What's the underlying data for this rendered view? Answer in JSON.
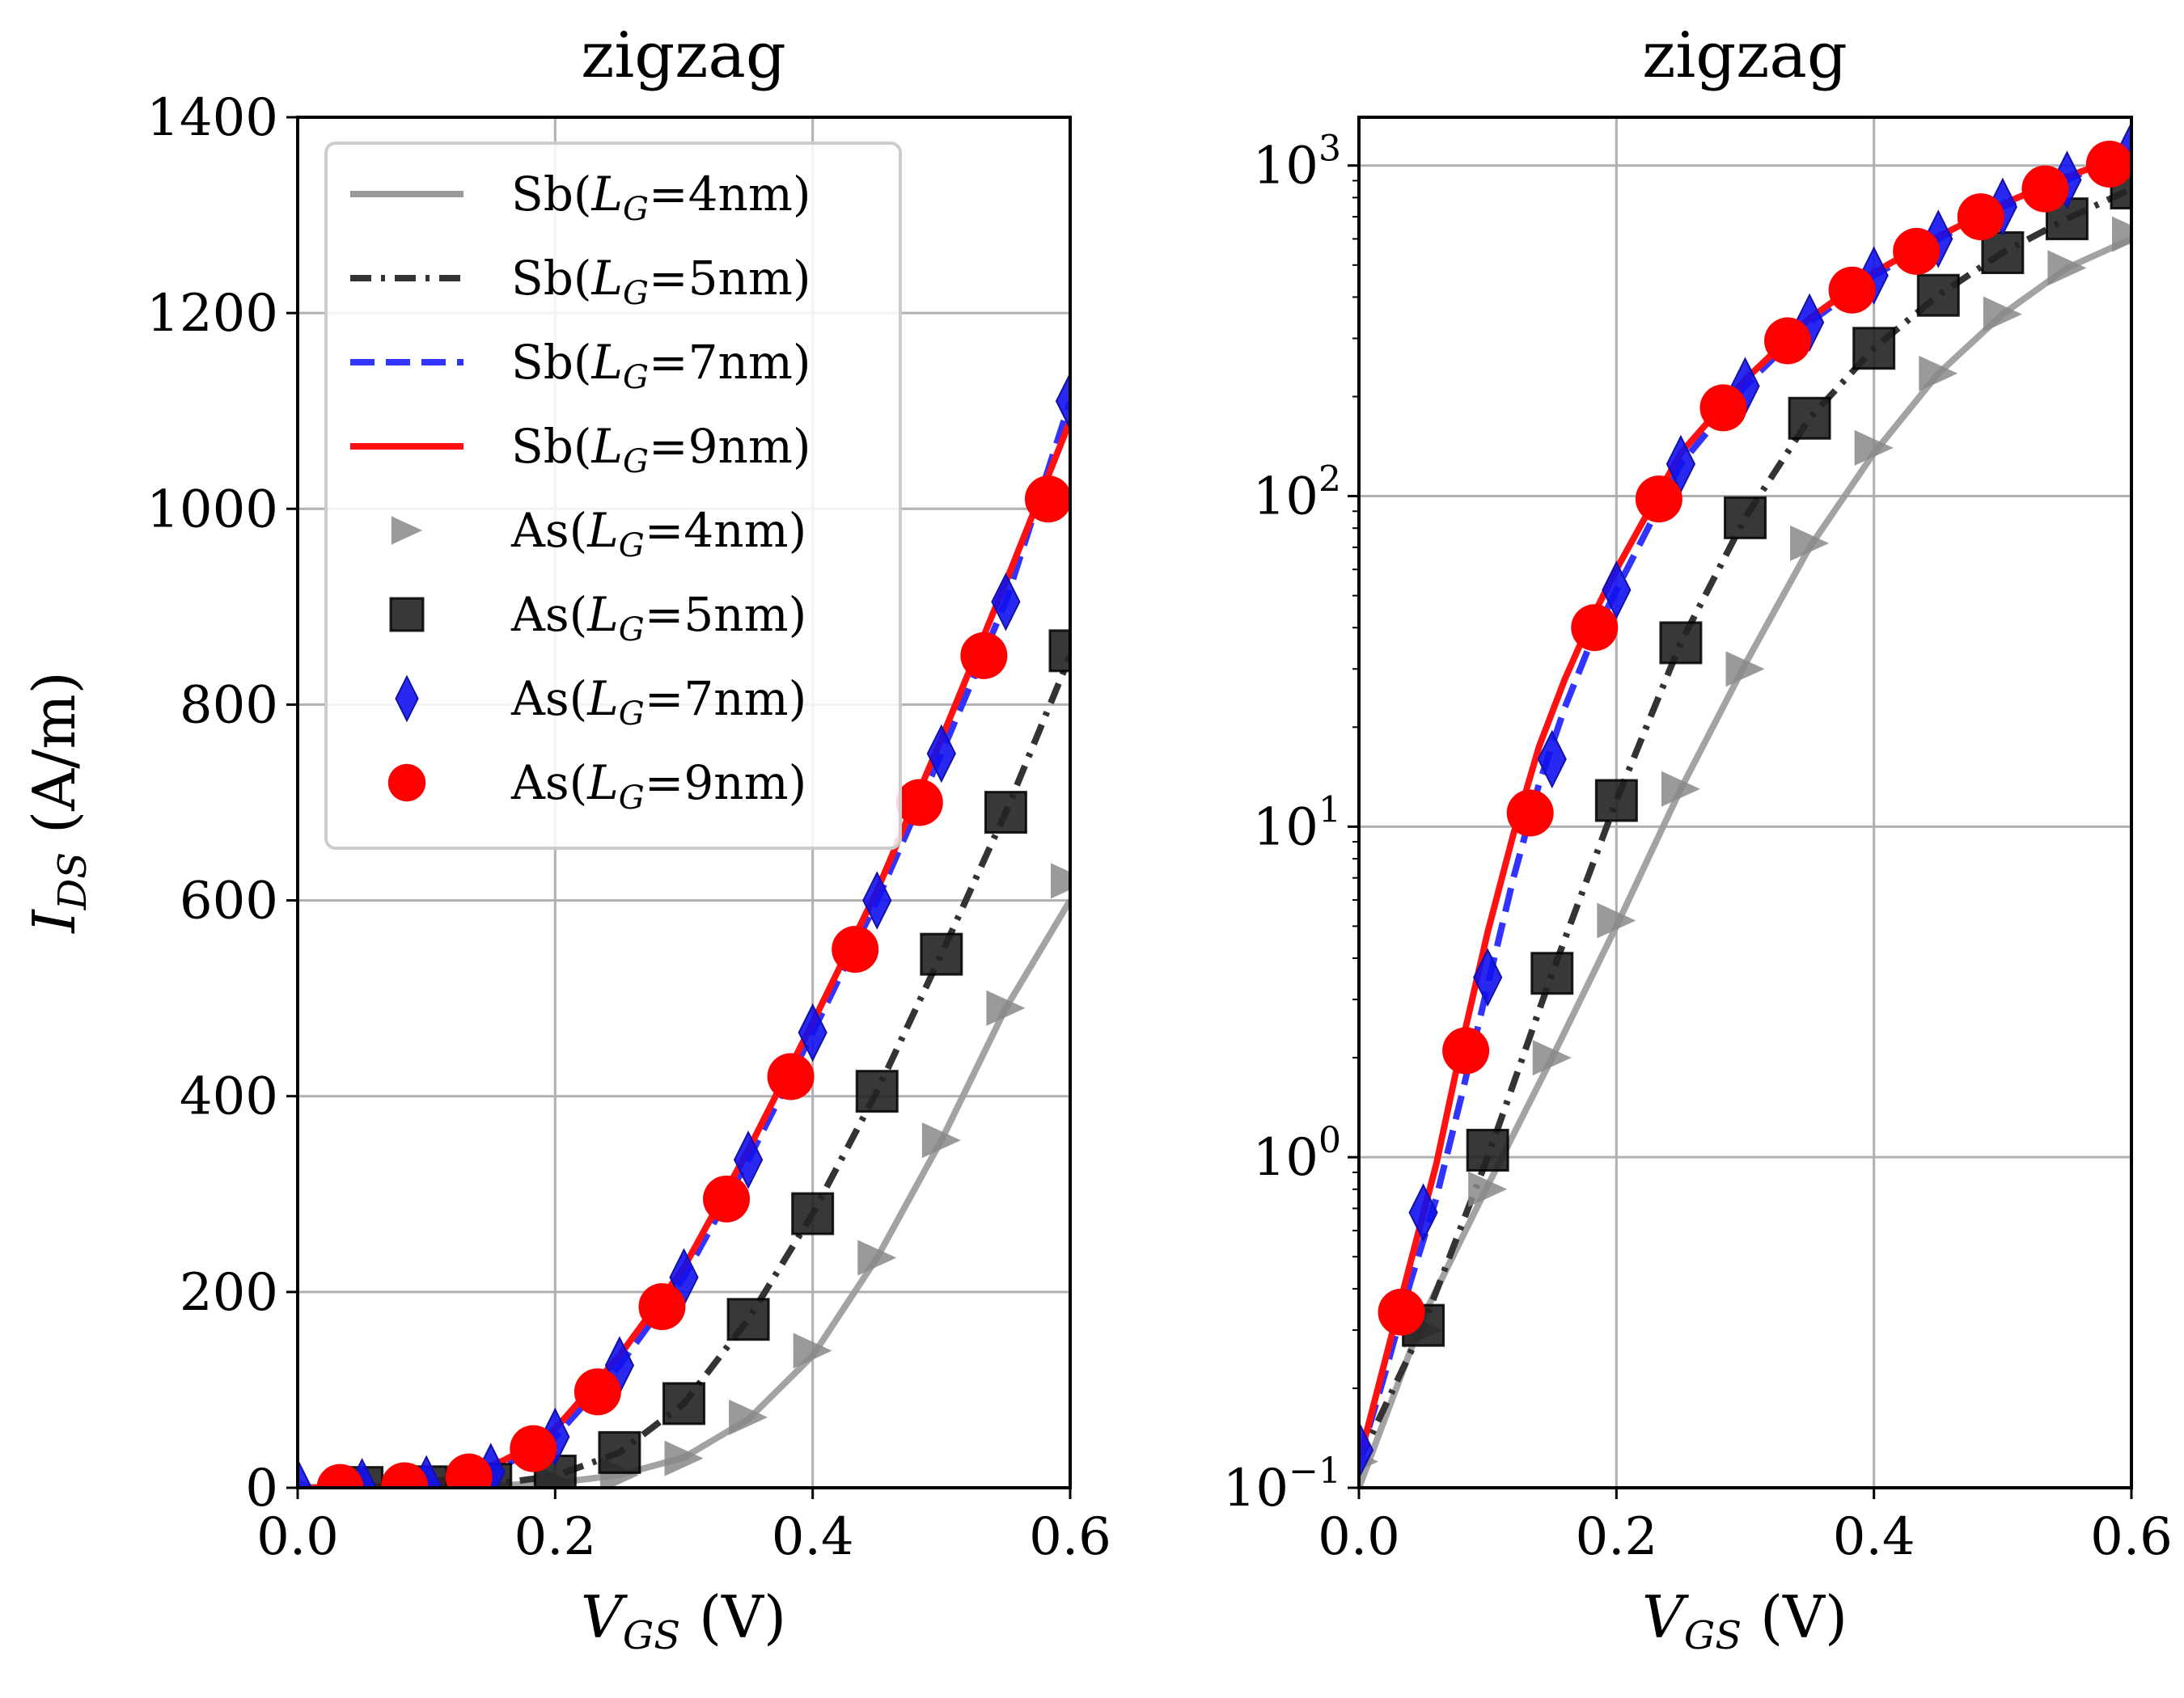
{
  "chart_data": [
    {
      "type": "line",
      "title": "zigzag",
      "xlabel": "V_GS (V)",
      "ylabel": "I_DS (A/m)",
      "xscale": "linear",
      "yscale": "linear",
      "xlim": [
        0.0,
        0.6
      ],
      "ylim": [
        0,
        1400
      ],
      "xticks": [
        "0.0",
        "0.2",
        "0.4",
        "0.6"
      ],
      "yticks": [
        "0",
        "200",
        "400",
        "600",
        "800",
        "1000",
        "1200",
        "1400"
      ],
      "grid": true,
      "legend_position": "upper-left"
    },
    {
      "type": "line",
      "title": "zigzag",
      "xlabel": "V_GS (V)",
      "ylabel": "",
      "xscale": "linear",
      "yscale": "log",
      "xlim": [
        0.0,
        0.6
      ],
      "ylim": [
        0.1,
        1400
      ],
      "xticks": [
        "0.0",
        "0.2",
        "0.4",
        "0.6"
      ],
      "yticks": [
        "10^-1",
        "10^0",
        "10^1",
        "10^2",
        "10^3"
      ],
      "grid": true
    }
  ],
  "series": [
    {
      "name": "Sb(LG=4nm)",
      "kind": "line",
      "color": "#999999",
      "dash": "solid",
      "x": [
        0.0,
        0.05,
        0.1,
        0.15,
        0.2,
        0.25,
        0.3,
        0.35,
        0.4,
        0.45,
        0.5,
        0.55,
        0.6
      ],
      "y": [
        0.1,
        0.33,
        0.82,
        2.0,
        5.0,
        13,
        31,
        70,
        135,
        235,
        355,
        490,
        600
      ]
    },
    {
      "name": "Sb(LG=5nm)",
      "kind": "line",
      "color": "#333333",
      "dash": "dashdot",
      "x": [
        0.0,
        0.05,
        0.1,
        0.15,
        0.2,
        0.25,
        0.3,
        0.35,
        0.4,
        0.45,
        0.5,
        0.55,
        0.6
      ],
      "y": [
        0.12,
        0.31,
        1.0,
        3.6,
        12,
        36,
        86,
        172,
        280,
        405,
        545,
        690,
        850
      ]
    },
    {
      "name": "Sb(LG=7nm)",
      "kind": "line",
      "color": "#3333ff",
      "dash": "dashed",
      "x": [
        0.0,
        0.02,
        0.04,
        0.06,
        0.08,
        0.1,
        0.12,
        0.14,
        0.16,
        0.18,
        0.2,
        0.25,
        0.3,
        0.35,
        0.4,
        0.45,
        0.5,
        0.55,
        0.6
      ],
      "y": [
        0.12,
        0.22,
        0.42,
        0.75,
        1.55,
        3.3,
        7.0,
        13.5,
        23,
        36,
        52,
        125,
        215,
        335,
        465,
        600,
        750,
        905,
        1110
      ]
    },
    {
      "name": "Sb(LG=9nm)",
      "kind": "line",
      "color": "#ff1111",
      "dash": "solid",
      "x": [
        0.0,
        0.02,
        0.04,
        0.06,
        0.08,
        0.1,
        0.12,
        0.14,
        0.16,
        0.18,
        0.2,
        0.25,
        0.3,
        0.35,
        0.4,
        0.45,
        0.5,
        0.55,
        0.6
      ],
      "y": [
        0.12,
        0.24,
        0.48,
        0.95,
        2.2,
        4.8,
        9.5,
        17.5,
        28,
        42,
        60,
        135,
        225,
        345,
        475,
        610,
        765,
        925,
        1090
      ]
    },
    {
      "name": "As(LG=4nm)",
      "kind": "marker",
      "marker": "triangle-right",
      "color": "#888888",
      "x": [
        0.0,
        0.05,
        0.1,
        0.15,
        0.2,
        0.25,
        0.3,
        0.35,
        0.4,
        0.45,
        0.5,
        0.55,
        0.6
      ],
      "y": [
        0.12,
        0.3,
        0.8,
        2.0,
        5.2,
        13,
        30,
        72,
        140,
        235,
        355,
        490,
        620
      ]
    },
    {
      "name": "As(LG=5nm)",
      "kind": "marker",
      "marker": "square",
      "color": "#222222",
      "x": [
        0.05,
        0.1,
        0.15,
        0.2,
        0.25,
        0.3,
        0.35,
        0.4,
        0.45,
        0.5,
        0.55,
        0.6
      ],
      "y": [
        0.31,
        1.05,
        3.6,
        12,
        36,
        86,
        172,
        280,
        405,
        545,
        690,
        855
      ]
    },
    {
      "name": "As(LG=7nm)",
      "kind": "marker",
      "marker": "thin-diamond",
      "color": "#1111ee",
      "x": [
        0.0,
        0.05,
        0.1,
        0.15,
        0.2,
        0.25,
        0.3,
        0.35,
        0.4,
        0.45,
        0.5,
        0.55,
        0.6
      ],
      "y": [
        0.13,
        0.68,
        3.5,
        16,
        52,
        125,
        215,
        335,
        465,
        600,
        750,
        905,
        1110
      ]
    },
    {
      "name": "As(LG=9nm)",
      "kind": "marker",
      "marker": "circle",
      "color": "#ff0000",
      "x": [
        0.033,
        0.083,
        0.133,
        0.183,
        0.233,
        0.283,
        0.333,
        0.383,
        0.433,
        0.483,
        0.533,
        0.583
      ],
      "y": [
        0.34,
        2.1,
        11,
        40,
        98,
        185,
        295,
        420,
        550,
        700,
        850,
        1010
      ]
    }
  ],
  "legend": {
    "entries": [
      {
        "prefix": "Sb(",
        "sym": "L",
        "sub": "G",
        "suffix": "=4nm)"
      },
      {
        "prefix": "Sb(",
        "sym": "L",
        "sub": "G",
        "suffix": "=5nm)"
      },
      {
        "prefix": "Sb(",
        "sym": "L",
        "sub": "G",
        "suffix": "=7nm)"
      },
      {
        "prefix": "Sb(",
        "sym": "L",
        "sub": "G",
        "suffix": "=9nm)"
      },
      {
        "prefix": "As(",
        "sym": "L",
        "sub": "G",
        "suffix": "=4nm)"
      },
      {
        "prefix": "As(",
        "sym": "L",
        "sub": "G",
        "suffix": "=5nm)"
      },
      {
        "prefix": "As(",
        "sym": "L",
        "sub": "G",
        "suffix": "=7nm)"
      },
      {
        "prefix": "As(",
        "sym": "L",
        "sub": "G",
        "suffix": "=9nm)"
      }
    ]
  },
  "labels": {
    "left_title": "zigzag",
    "right_title": "zigzag",
    "xlabel_sym": "V",
    "xlabel_sub": "GS",
    "xlabel_unit": " (V)",
    "ylabel_sym": "I",
    "ylabel_sub": "DS",
    "ylabel_unit": " (A/m)",
    "log_ticks": [
      {
        "base": "10",
        "exp": "−1"
      },
      {
        "base": "10",
        "exp": "0"
      },
      {
        "base": "10",
        "exp": "1"
      },
      {
        "base": "10",
        "exp": "2"
      },
      {
        "base": "10",
        "exp": "3"
      }
    ]
  }
}
